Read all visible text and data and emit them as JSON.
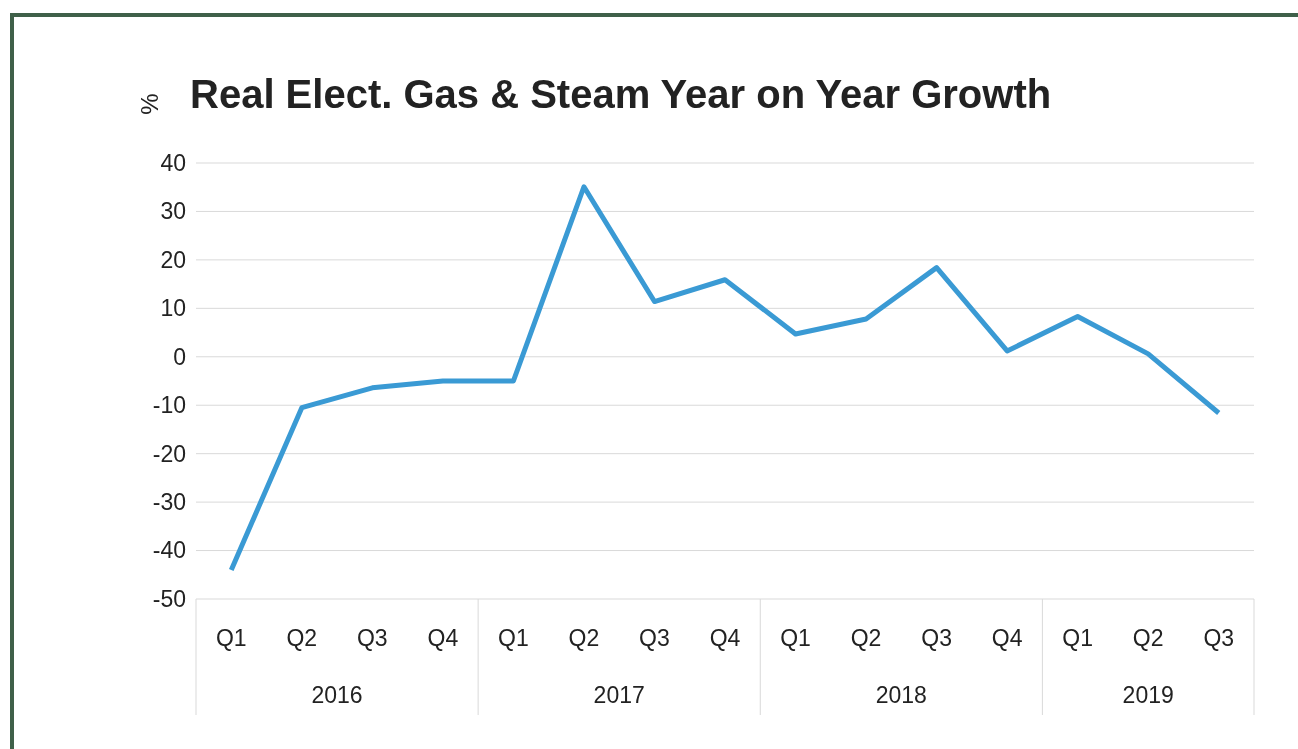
{
  "chart_data": {
    "type": "line",
    "title": "Real Elect. Gas & Steam Year on Year Growth",
    "ylabel": "%",
    "categories": [
      "Q1",
      "Q2",
      "Q3",
      "Q4",
      "Q1",
      "Q2",
      "Q3",
      "Q4",
      "Q1",
      "Q2",
      "Q3",
      "Q4",
      "Q1",
      "Q2",
      "Q3"
    ],
    "series": [
      {
        "color": "#3a9ad4",
        "values": [
          -44,
          -10.5,
          -6.4,
          -5,
          -5,
          35.1,
          11.4,
          15.9,
          4.7,
          7.8,
          18.4,
          1.2,
          8.3,
          0.6,
          -11.6
        ]
      }
    ],
    "annotations": [
      "2016",
      "2017",
      "2018",
      "2019"
    ],
    "ylim": [
      -50,
      40
    ],
    "yticks": [
      -50,
      -40,
      -30,
      -20,
      -10,
      0,
      10,
      20,
      30,
      40
    ],
    "grid": "y",
    "marker": "none",
    "line_style": "solid"
  }
}
